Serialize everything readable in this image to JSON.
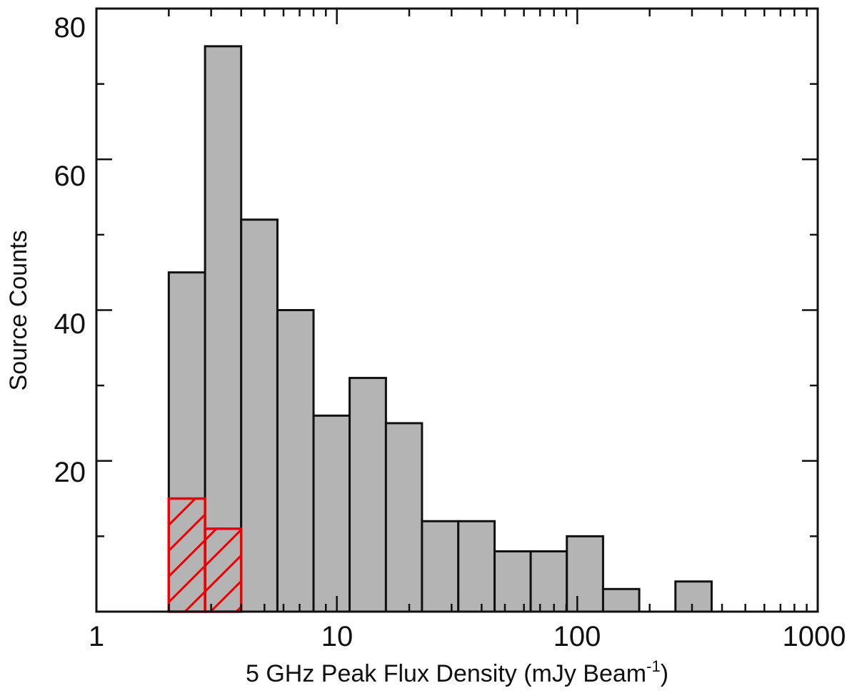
{
  "chart_data": {
    "type": "bar",
    "xscale": "log",
    "xlim": [
      1,
      1000
    ],
    "ylim": [
      0,
      80
    ],
    "xlabel": "5 GHz Peak Flux Density (mJy Beam",
    "xlabel_superscript": "-1",
    "xlabel_suffix": ")",
    "ylabel": "Source Counts",
    "x_tick_labels": [
      "1",
      "10",
      "100",
      "1000"
    ],
    "y_tick_labels": [
      "20",
      "40",
      "60",
      "80"
    ],
    "grid": false,
    "series": [
      {
        "bin_edges": [
          2.0,
          2.83,
          4.0,
          5.66,
          8.0,
          11.3,
          16.0,
          22.6,
          32.0,
          45.3,
          64.0,
          90.5,
          128,
          181,
          256,
          362
        ],
        "values": [
          45,
          75,
          52,
          40,
          26,
          31,
          25,
          12,
          12,
          8,
          8,
          10,
          3,
          0,
          4
        ],
        "color": "#b4b4b4"
      },
      {
        "bin_edges": [
          2.0,
          2.83,
          4.0
        ],
        "values": [
          15,
          11
        ],
        "color": "#ee0000",
        "hatch": true
      }
    ]
  }
}
